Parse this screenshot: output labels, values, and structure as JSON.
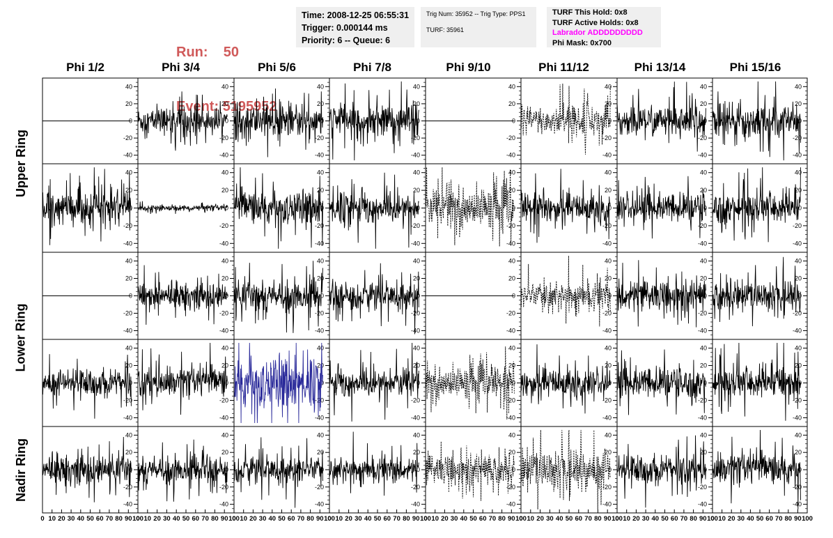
{
  "header": {
    "run_label": "Run:",
    "run_value": "50",
    "event_label": "Event:",
    "event_value": "5195952",
    "time_line": "Time: 2008-12-25 06:55:31",
    "trigger_line": "Trigger: 0.000144 ms",
    "priority_line": "Priority: 6 -- Queue: 6",
    "trig_num_line": "Trig Num: 35952 -- Trig Type: PPS1",
    "turf_line": "TURF: 35961",
    "turf_hold_line": "TURF This Hold: 0x8",
    "turf_active_line": "TURF Active Holds: 0x8",
    "labrador_line": "Labrador ADDDDDDDDD",
    "phi_mask_line": "Phi Mask: 0x700",
    "colors": {
      "run_event": "#d05a5a",
      "labrador": "#ff00ff",
      "box_bg": "#efefef"
    }
  },
  "columns": [
    "Phi 1/2",
    "Phi 3/4",
    "Phi 5/6",
    "Phi 7/8",
    "Phi 9/10",
    "Phi 11/12",
    "Phi 13/14",
    "Phi 15/16"
  ],
  "ring_labels": [
    "Upper Ring",
    "Lower Ring",
    "Nadir Ring"
  ],
  "chart_data": {
    "type": "line",
    "description_grid": "5 rows x 8 columns of waveform panels",
    "xlim": [
      0,
      100
    ],
    "ylim": [
      -50,
      50
    ],
    "y_ticks": [
      -40,
      -20,
      0,
      20,
      40
    ],
    "x_ticks": [
      0,
      10,
      20,
      30,
      40,
      50,
      60,
      70,
      80,
      90,
      100
    ],
    "x_tick_labels": [
      "0",
      "10",
      "20",
      "30",
      "40",
      "50",
      "60",
      "70",
      "80",
      "90",
      "100"
    ],
    "panel_x_range": [
      0,
      93
    ],
    "panels": [
      [
        {
          "style": "flat",
          "amp": 0,
          "color": "#000000"
        },
        {
          "style": "solid",
          "amp": 14,
          "color": "#000000"
        },
        {
          "style": "solid",
          "amp": 16,
          "color": "#000000"
        },
        {
          "style": "solid",
          "amp": 17,
          "color": "#000000"
        },
        {
          "style": "flat",
          "amp": 0,
          "color": "#000000"
        },
        {
          "style": "dotted",
          "amp": 16,
          "color": "#000000"
        },
        {
          "style": "solid",
          "amp": 16,
          "color": "#000000"
        },
        {
          "style": "solid",
          "amp": 17,
          "color": "#000000"
        }
      ],
      [
        {
          "style": "solid",
          "amp": 17,
          "color": "#000000"
        },
        {
          "style": "solid",
          "amp": 3,
          "color": "#000000"
        },
        {
          "style": "solid",
          "amp": 17,
          "color": "#000000"
        },
        {
          "style": "solid",
          "amp": 18,
          "color": "#000000"
        },
        {
          "style": "dotted",
          "amp": 20,
          "color": "#000000"
        },
        {
          "style": "solid",
          "amp": 15,
          "color": "#000000"
        },
        {
          "style": "solid",
          "amp": 15,
          "color": "#000000"
        },
        {
          "style": "solid",
          "amp": 17,
          "color": "#000000"
        }
      ],
      [
        {
          "style": "flat",
          "amp": 0,
          "color": "#000000"
        },
        {
          "style": "solid",
          "amp": 13,
          "color": "#000000"
        },
        {
          "style": "solid",
          "amp": 15,
          "color": "#000000"
        },
        {
          "style": "solid",
          "amp": 14,
          "color": "#000000"
        },
        {
          "style": "flat",
          "amp": 0,
          "color": "#000000"
        },
        {
          "style": "dotted",
          "amp": 14,
          "color": "#000000"
        },
        {
          "style": "solid",
          "amp": 16,
          "color": "#000000"
        },
        {
          "style": "solid",
          "amp": 16,
          "color": "#000000"
        }
      ],
      [
        {
          "style": "solid",
          "amp": 14,
          "color": "#000000"
        },
        {
          "style": "solid",
          "amp": 15,
          "color": "#000000"
        },
        {
          "style": "solid",
          "amp": 27,
          "color": "#2a2a9a"
        },
        {
          "style": "solid",
          "amp": 17,
          "color": "#000000"
        },
        {
          "style": "dotted",
          "amp": 16,
          "color": "#000000"
        },
        {
          "style": "solid",
          "amp": 15,
          "color": "#000000"
        },
        {
          "style": "solid",
          "amp": 16,
          "color": "#000000"
        },
        {
          "style": "solid",
          "amp": 17,
          "color": "#000000"
        }
      ],
      [
        {
          "style": "solid",
          "amp": 15,
          "color": "#000000"
        },
        {
          "style": "solid",
          "amp": 13,
          "color": "#000000"
        },
        {
          "style": "solid",
          "amp": 14,
          "color": "#000000"
        },
        {
          "style": "solid",
          "amp": 12,
          "color": "#000000"
        },
        {
          "style": "dotted",
          "amp": 16,
          "color": "#000000"
        },
        {
          "style": "dotted",
          "amp": 22,
          "color": "#000000"
        },
        {
          "style": "solid",
          "amp": 15,
          "color": "#000000"
        },
        {
          "style": "solid",
          "amp": 16,
          "color": "#000000"
        }
      ]
    ]
  }
}
